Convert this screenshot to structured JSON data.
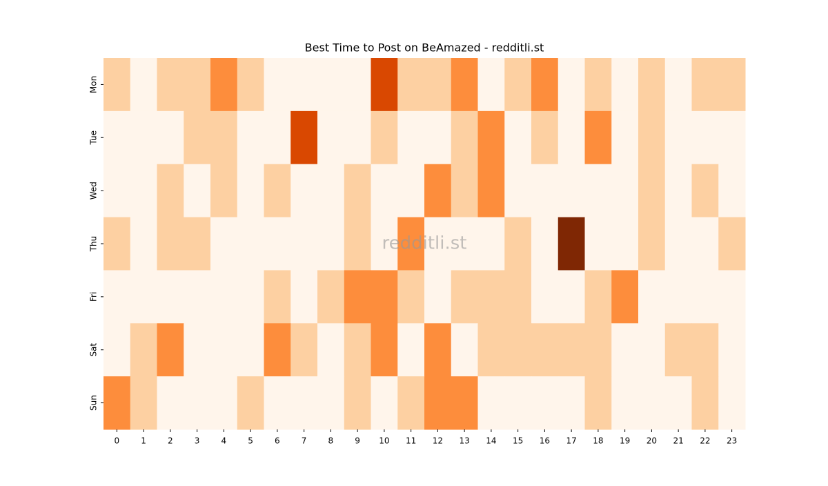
{
  "chart_data": {
    "type": "heatmap",
    "title": "Best Time to Post on BeAmazed - redditli.st",
    "watermark": "redditli.st",
    "x": [
      0,
      1,
      2,
      3,
      4,
      5,
      6,
      7,
      8,
      9,
      10,
      11,
      12,
      13,
      14,
      15,
      16,
      17,
      18,
      19,
      20,
      21,
      22,
      23
    ],
    "y": [
      "Mon",
      "Tue",
      "Wed",
      "Thu",
      "Fri",
      "Sat",
      "Sun"
    ],
    "values": [
      [
        1,
        0,
        1,
        1,
        2,
        1,
        0,
        0,
        0,
        0,
        3,
        1,
        1,
        2,
        0,
        1,
        2,
        0,
        1,
        0,
        1,
        0,
        1,
        1
      ],
      [
        0,
        0,
        0,
        1,
        1,
        0,
        0,
        3,
        0,
        0,
        1,
        0,
        0,
        1,
        2,
        0,
        1,
        0,
        2,
        0,
        1,
        0,
        0,
        0
      ],
      [
        0,
        0,
        1,
        0,
        1,
        0,
        1,
        0,
        0,
        1,
        0,
        0,
        2,
        1,
        2,
        0,
        0,
        0,
        0,
        0,
        1,
        0,
        1,
        0
      ],
      [
        1,
        0,
        1,
        1,
        0,
        0,
        0,
        0,
        0,
        1,
        0,
        2,
        0,
        0,
        0,
        1,
        0,
        4,
        0,
        0,
        1,
        0,
        0,
        1
      ],
      [
        0,
        0,
        0,
        0,
        0,
        0,
        1,
        0,
        1,
        2,
        2,
        1,
        0,
        1,
        1,
        1,
        0,
        0,
        1,
        2,
        0,
        0,
        0,
        0
      ],
      [
        0,
        1,
        2,
        0,
        0,
        0,
        2,
        1,
        0,
        1,
        2,
        0,
        2,
        0,
        1,
        1,
        1,
        1,
        1,
        0,
        0,
        1,
        1,
        0
      ],
      [
        2,
        1,
        0,
        0,
        0,
        1,
        0,
        0,
        0,
        1,
        0,
        1,
        2,
        2,
        0,
        0,
        0,
        0,
        1,
        0,
        0,
        0,
        1,
        0
      ]
    ],
    "vmin": 0,
    "vmax": 4,
    "colors": [
      "#fff5eb",
      "#fdd0a2",
      "#fd8d3c",
      "#d94801",
      "#7f2704"
    ]
  }
}
